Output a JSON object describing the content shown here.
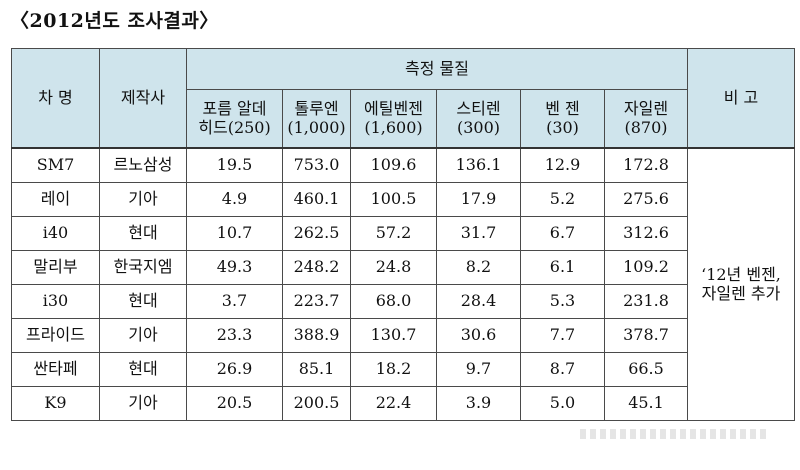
{
  "title": "〈2012년도 조사결과〉",
  "table": {
    "headers": {
      "car_name": "차 명",
      "maker": "제작사",
      "substances_group": "측정 물질",
      "note": "비 고",
      "substances": [
        {
          "name": "포름 알데",
          "name2": "히드(250)"
        },
        {
          "name": "톨루엔",
          "name2": "(1,000)"
        },
        {
          "name": "에틸벤젠",
          "name2": "(1,600)"
        },
        {
          "name": "스티렌",
          "name2": "(300)"
        },
        {
          "name": "벤  젠",
          "name2": "(30)"
        },
        {
          "name": "자일렌",
          "name2": "(870)"
        }
      ]
    },
    "rows": [
      {
        "car": "SM7",
        "maker": "르노삼성",
        "values": [
          "19.5",
          "753.0",
          "109.6",
          "136.1",
          "12.9",
          "172.8"
        ]
      },
      {
        "car": "레이",
        "maker": "기아",
        "values": [
          "4.9",
          "460.1",
          "100.5",
          "17.9",
          "5.2",
          "275.6"
        ]
      },
      {
        "car": "i40",
        "maker": "현대",
        "values": [
          "10.7",
          "262.5",
          "57.2",
          "31.7",
          "6.7",
          "312.6"
        ]
      },
      {
        "car": "말리부",
        "maker": "한국지엠",
        "values": [
          "49.3",
          "248.2",
          "24.8",
          "8.2",
          "6.1",
          "109.2"
        ]
      },
      {
        "car": "i30",
        "maker": "현대",
        "values": [
          "3.7",
          "223.7",
          "68.0",
          "28.4",
          "5.3",
          "231.8"
        ]
      },
      {
        "car": "프라이드",
        "maker": "기아",
        "values": [
          "23.3",
          "388.9",
          "130.7",
          "30.6",
          "7.7",
          "378.7"
        ]
      },
      {
        "car": "싼타페",
        "maker": "현대",
        "values": [
          "26.9",
          "85.1",
          "18.2",
          "9.7",
          "8.7",
          "66.5"
        ]
      },
      {
        "car": "K9",
        "maker": "기아",
        "values": [
          "20.5",
          "200.5",
          "22.4",
          "3.9",
          "5.0",
          "45.1"
        ]
      }
    ],
    "note_line1": "‘12년 벤젠,",
    "note_line2": "자일렌 추가"
  }
}
